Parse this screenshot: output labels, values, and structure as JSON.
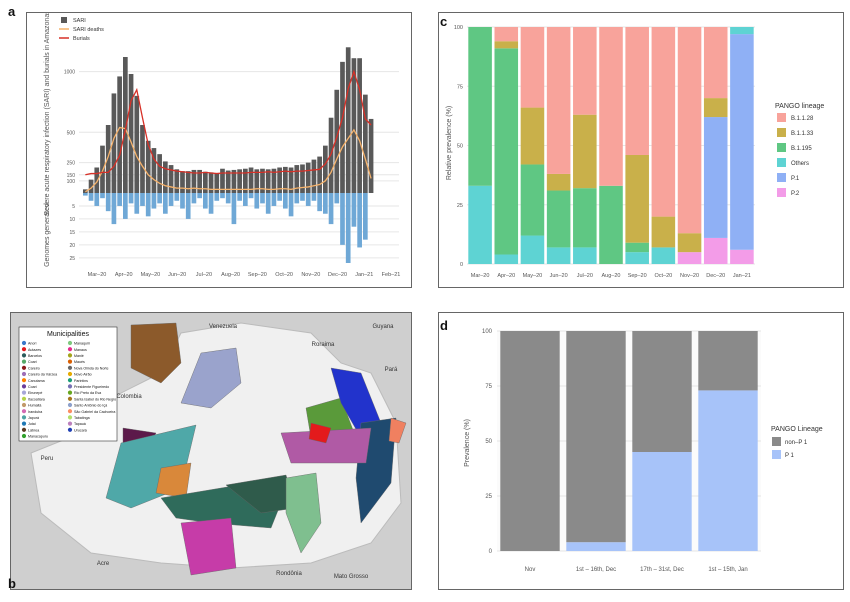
{
  "panel_labels": {
    "a": "a",
    "b": "b",
    "c": "c",
    "d": "d"
  },
  "colors": {
    "sari": "#595959",
    "deaths": "#f5b26b",
    "burials": "#d73027",
    "genomes": "#6fa8d6",
    "grid": "#e6e6e6"
  },
  "chart_data": [
    {
      "id": "a",
      "type": "bar",
      "ylabel": "Severe acute respiratory infection (SARI) and burials in Amazonas",
      "ylabel_lower": "Genomes generated",
      "ylim": [
        0,
        1400
      ],
      "yticks": [
        100,
        150,
        250,
        500,
        1000
      ],
      "yticks_lower": [
        5,
        10,
        15,
        20,
        25
      ],
      "xticks": [
        "Mar–20",
        "Apr–20",
        "May–20",
        "Jun–20",
        "Jul–20",
        "Aug–20",
        "Sep–20",
        "Oct–20",
        "Nov–20",
        "Dec–20",
        "Jan–21",
        "Feb–21"
      ],
      "legend": [
        "SARI",
        "SARI deaths",
        "Burials"
      ],
      "sari_weekly": [
        30,
        110,
        210,
        390,
        560,
        820,
        960,
        1120,
        980,
        800,
        560,
        430,
        370,
        320,
        260,
        230,
        195,
        180,
        180,
        190,
        190,
        175,
        170,
        165,
        200,
        185,
        190,
        195,
        200,
        210,
        195,
        200,
        195,
        200,
        210,
        215,
        210,
        230,
        235,
        250,
        275,
        300,
        390,
        620,
        850,
        1080,
        1200,
        1110,
        1110,
        810,
        610
      ],
      "deaths_weekly": [
        10,
        40,
        90,
        180,
        300,
        450,
        540,
        530,
        420,
        300,
        220,
        150,
        110,
        80,
        60,
        50,
        40,
        40,
        35,
        40,
        35,
        35,
        30,
        30,
        30,
        30,
        30,
        30,
        30,
        30,
        35,
        35,
        30,
        30,
        35,
        35,
        30,
        40,
        45,
        50,
        60,
        70,
        100,
        170,
        280,
        380,
        450,
        520,
        430,
        280,
        120
      ],
      "burials_weekly": [
        150,
        160,
        160,
        170,
        170,
        220,
        310,
        520,
        760,
        850,
        620,
        400,
        280,
        220,
        200,
        190,
        180,
        175,
        170,
        165,
        165,
        170,
        165,
        160,
        165,
        165,
        165,
        165,
        165,
        170,
        170,
        170,
        175,
        170,
        175,
        180,
        175,
        180,
        180,
        185,
        190,
        195,
        240,
        320,
        460,
        620,
        860,
        1000,
        850,
        610,
        560
      ],
      "genomes_weekly": [
        1,
        3,
        5,
        2,
        7,
        12,
        5,
        10,
        4,
        8,
        5,
        9,
        6,
        4,
        8,
        5,
        3,
        6,
        10,
        4,
        2,
        6,
        8,
        3,
        2,
        4,
        12,
        3,
        5,
        2,
        6,
        4,
        8,
        5,
        3,
        6,
        9,
        4,
        3,
        5,
        3,
        7,
        8,
        12,
        4,
        20,
        27,
        13,
        21,
        18,
        0
      ]
    },
    {
      "id": "c",
      "type": "bar",
      "stacked": true,
      "ylabel": "Relative prevalence (%)",
      "ylim": [
        0,
        100
      ],
      "yticks": [
        0,
        25,
        50,
        75,
        100
      ],
      "categories": [
        "Mar–20",
        "Apr–20",
        "May–20",
        "Jun–20",
        "Jul–20",
        "Aug–20",
        "Sep–20",
        "Oct–20",
        "Nov–20",
        "Dec–20",
        "Jan–21"
      ],
      "legend_title": "PANGO lineage",
      "series": [
        {
          "name": "B.1.1.28",
          "color": "#f8a39b",
          "values": [
            0,
            6,
            34,
            62,
            37,
            67,
            54,
            80,
            87,
            30,
            0
          ]
        },
        {
          "name": "B.1.1.33",
          "color": "#c9b04a",
          "values": [
            0,
            3,
            24,
            7,
            31,
            0,
            37,
            13,
            8,
            8,
            0
          ]
        },
        {
          "name": "B.1.195",
          "color": "#5fc783",
          "values": [
            67,
            87,
            30,
            24,
            25,
            33,
            4,
            0,
            0,
            0,
            0
          ]
        },
        {
          "name": "Others",
          "color": "#5ed3d3",
          "values": [
            33,
            4,
            12,
            7,
            7,
            0,
            5,
            7,
            0,
            0,
            3
          ]
        },
        {
          "name": "P.1",
          "color": "#8fb0f5",
          "values": [
            0,
            0,
            0,
            0,
            0,
            0,
            0,
            0,
            0,
            51,
            91
          ]
        },
        {
          "name": "P.2",
          "color": "#f39ce8",
          "values": [
            0,
            0,
            0,
            0,
            0,
            0,
            0,
            0,
            5,
            11,
            6
          ]
        }
      ]
    },
    {
      "id": "d",
      "type": "bar",
      "stacked": true,
      "ylabel": "Prevalence (%)",
      "ylim": [
        0,
        100
      ],
      "yticks": [
        0,
        25,
        50,
        75,
        100
      ],
      "categories": [
        "Nov",
        "1st – 16th, Dec",
        "17th – 31st, Dec",
        "1st – 15th, Jan"
      ],
      "legend_title": "PANGO Lineage",
      "series": [
        {
          "name": "non–P 1",
          "color": "#8a8a8a",
          "values": [
            100,
            96,
            55,
            27
          ]
        },
        {
          "name": "P 1",
          "color": "#a7c3f9",
          "values": [
            0,
            4,
            45,
            73
          ]
        }
      ]
    }
  ],
  "map": {
    "legend_title": "Municipalities",
    "municipalities": [
      {
        "name": "Anori",
        "color": "#3a78c9"
      },
      {
        "name": "Autazes",
        "color": "#e31a1c"
      },
      {
        "name": "Barcelos",
        "color": "#2b5b5b"
      },
      {
        "name": "Coari",
        "color": "#55a866"
      },
      {
        "name": "Careiro",
        "color": "#8b1a1a"
      },
      {
        "name": "Careiro da Várzea",
        "color": "#9e6fb7"
      },
      {
        "name": "Canutama",
        "color": "#ff7f00"
      },
      {
        "name": "Coari",
        "color": "#6a3d9a"
      },
      {
        "name": "Eirunepé",
        "color": "#a6a6d8"
      },
      {
        "name": "Itacoatiara",
        "color": "#b4d24a"
      },
      {
        "name": "Humaitá",
        "color": "#c19a6b"
      },
      {
        "name": "Iranduba",
        "color": "#d36ab3"
      },
      {
        "name": "Japurá",
        "color": "#4fa3a3"
      },
      {
        "name": "Jutaí",
        "color": "#1f78b4"
      },
      {
        "name": "Lábrea",
        "color": "#5c3a21"
      },
      {
        "name": "Manacapuru",
        "color": "#33a02c"
      },
      {
        "name": "Manaquiri",
        "color": "#7fc97f"
      },
      {
        "name": "Manaus",
        "color": "#e7298a"
      },
      {
        "name": "Manié",
        "color": "#a4a41c"
      },
      {
        "name": "Maués",
        "color": "#d95f02"
      },
      {
        "name": "Nova Olinda do Norte",
        "color": "#666666"
      },
      {
        "name": "Novo Airão",
        "color": "#e6ab02"
      },
      {
        "name": "Parintins",
        "color": "#1b9e77"
      },
      {
        "name": "Presidente Figueiredo",
        "color": "#7570b3"
      },
      {
        "name": "Rio Preto da Eva",
        "color": "#66a61e"
      },
      {
        "name": "Santa Isabel do Rio Negro",
        "color": "#a6761d"
      },
      {
        "name": "Santo Antônio do Içá",
        "color": "#8da0cb"
      },
      {
        "name": "São Gabriel da Cachoeira",
        "color": "#fc8d62"
      },
      {
        "name": "Tabatinga",
        "color": "#b3de69"
      },
      {
        "name": "Tapauá",
        "color": "#bc80bd"
      },
      {
        "name": "Urucará",
        "color": "#1f3fb4"
      }
    ],
    "places": [
      "Venezuela",
      "Guyana",
      "Roraima",
      "Pará",
      "Colombia",
      "Peru",
      "Acre",
      "Rondônia",
      "Mato Grosso"
    ]
  }
}
